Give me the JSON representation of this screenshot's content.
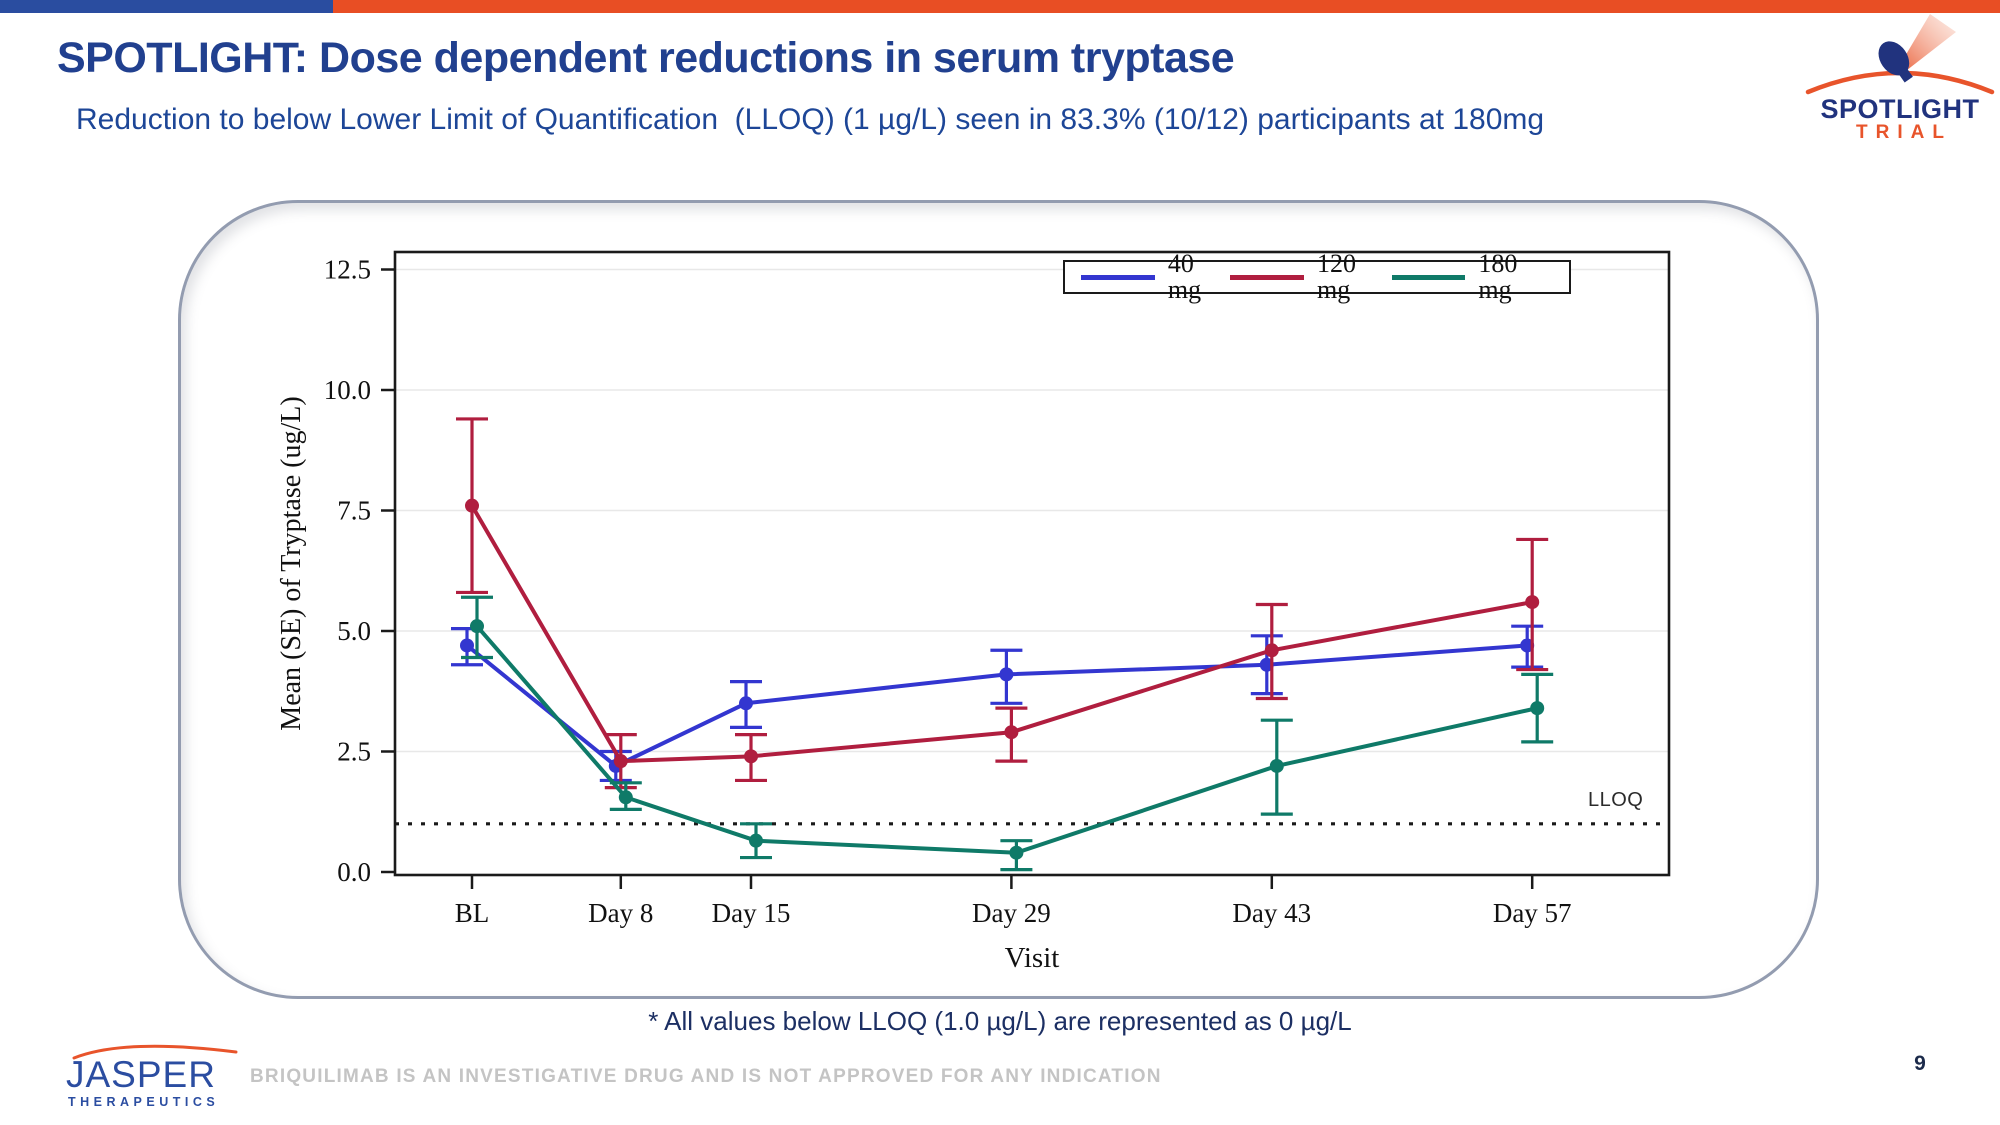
{
  "slide": {
    "title": "SPOTLIGHT: Dose dependent reductions in serum tryptase",
    "subtitle": "Reduction to below Lower Limit of Quantification  (LLOQ) (1 µg/L) seen in 83.3% (10/12) participants at 180mg",
    "footnote": "* All values below LLOQ (1.0 µg/L) are represented as 0 µg/L",
    "disclaimer": "BRIQUILIMAB IS AN INVESTIGATIVE DRUG AND IS NOT APPROVED FOR ANY INDICATION",
    "page_number": "9"
  },
  "top_bar": {
    "blue": "#2a4da0",
    "orange": "#e84e24"
  },
  "spotlight_logo": {
    "line1": "SPOTLIGHT",
    "line2": "TRIAL",
    "blue": "#21337e",
    "orange": "#e8542b"
  },
  "jasper_logo": {
    "name": "JASPER",
    "sub": "THERAPEUTICS"
  },
  "chart_data": {
    "type": "line",
    "title": "",
    "xlabel": "Visit",
    "ylabel": "Mean (SE) of Tryptase (ug/L)",
    "categories": [
      "BL",
      "Day 8",
      "Day 15",
      "Day 29",
      "Day 43",
      "Day 57"
    ],
    "x_days": [
      0,
      8,
      15,
      29,
      43,
      57
    ],
    "yticks": [
      0.0,
      2.5,
      5.0,
      7.5,
      10.0,
      12.5
    ],
    "ytick_labels": [
      "0.0",
      "2.5",
      "5.0",
      "7.5",
      "10.0",
      "12.5"
    ],
    "ylim": [
      0,
      12.9
    ],
    "grid": true,
    "legend_position": "top-right-inside",
    "reference_line": {
      "label": "LLOQ",
      "y": 1.0,
      "style": "dotted"
    },
    "series": [
      {
        "name": "40 mg",
        "color": "#3336d0",
        "means": [
          4.7,
          2.2,
          3.5,
          4.1,
          4.3,
          4.7
        ],
        "err_low": [
          4.3,
          1.9,
          3.0,
          3.5,
          3.7,
          4.25
        ],
        "err_high": [
          5.05,
          2.5,
          3.95,
          4.6,
          4.9,
          5.1
        ]
      },
      {
        "name": "120 mg",
        "color": "#b01e3f",
        "means": [
          7.6,
          2.3,
          2.4,
          2.9,
          4.6,
          5.6
        ],
        "err_low": [
          5.8,
          1.75,
          1.9,
          2.3,
          3.6,
          4.2
        ],
        "err_high": [
          9.4,
          2.85,
          2.85,
          3.4,
          5.55,
          6.9
        ]
      },
      {
        "name": "180 mg",
        "color": "#0f7a68",
        "means": [
          5.1,
          1.55,
          0.65,
          0.4,
          2.2,
          3.4
        ],
        "err_low": [
          4.45,
          1.3,
          0.3,
          0.05,
          1.2,
          2.7
        ],
        "err_high": [
          5.7,
          1.85,
          1.0,
          0.65,
          3.15,
          4.1
        ]
      }
    ]
  }
}
